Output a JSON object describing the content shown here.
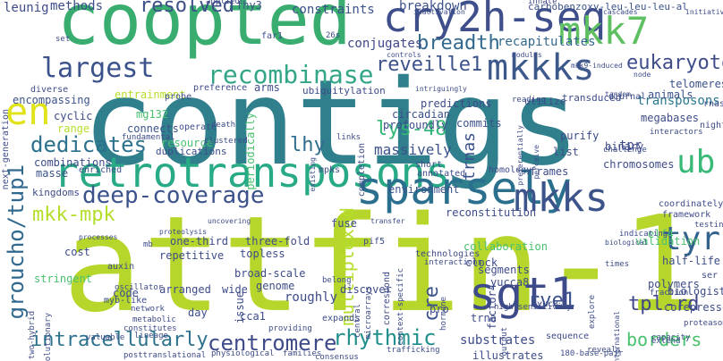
{
  "words": [
    {
      "text": "contigs",
      "color": "#2f7f8c"
    },
    {
      "text": "attfin-1",
      "color": "#b7d62b"
    },
    {
      "text": "coopted",
      "color": "#39ad6f"
    },
    {
      "text": "retrotransposons",
      "color": "#28aa86"
    },
    {
      "text": "sparsely",
      "color": "#2b6f8e"
    },
    {
      "text": "cry2h-seq",
      "color": "#3f4f8b"
    },
    {
      "text": "sgt1",
      "color": "#3e4b8a"
    },
    {
      "text": "mkkks",
      "color": "#3d588b"
    },
    {
      "text": "mkks",
      "color": "#3c548a"
    },
    {
      "text": "mkk7",
      "color": "#5fc061"
    },
    {
      "text": "recombinase",
      "color": "#33a688"
    },
    {
      "text": "largest",
      "color": "#3b528b"
    },
    {
      "text": "en",
      "color": "#dfe318"
    },
    {
      "text": "deep-coverage",
      "color": "#3b528b"
    },
    {
      "text": "groucho/tup1",
      "color": "#31688e"
    },
    {
      "text": "rhythmic",
      "color": "#21908d"
    },
    {
      "text": "centromere",
      "color": "#3e4a89"
    },
    {
      "text": "ub",
      "color": "#38b977"
    },
    {
      "text": "tyr",
      "color": "#33638d"
    },
    {
      "text": "dedicates",
      "color": "#2c718e"
    },
    {
      "text": "eukaryotes",
      "color": "#3e4c8a"
    },
    {
      "text": "reveille1",
      "color": "#3b528b"
    },
    {
      "text": "breadth",
      "color": "#31688e"
    },
    {
      "text": "resolved",
      "color": "#3d4e8a"
    },
    {
      "text": "mkk-mpk",
      "color": "#b5de2b"
    },
    {
      "text": "intracellularly",
      "color": "#2c728e"
    },
    {
      "text": "multiplexed",
      "color": "#b5de2b"
    },
    {
      "text": "rve1",
      "color": "#3b528b"
    },
    {
      "text": "lhy",
      "color": "#2f6c8e"
    },
    {
      "text": "lys-48",
      "color": "#35b779"
    },
    {
      "text": "tpl-rd",
      "color": "#3f4788"
    },
    {
      "text": "borders",
      "color": "#48c16e"
    },
    {
      "text": "trnas",
      "color": "#3b528b"
    },
    {
      "text": "massively",
      "color": "#3b528b"
    },
    {
      "text": "transposons",
      "color": "#2a788e"
    },
    {
      "text": "recapitulates",
      "color": "#31688e"
    },
    {
      "text": "conjugates",
      "color": "#3f4889"
    },
    {
      "text": "constraints",
      "color": "#3b528b"
    },
    {
      "text": "breakdown",
      "color": "#3b528b"
    },
    {
      "text": "carbobenzoxy-leu-leu-leu-al",
      "color": "#3b528b"
    },
    {
      "text": "innate",
      "color": "#3f4788"
    },
    {
      "text": "telomeres",
      "color": "#3b528b"
    },
    {
      "text": "fhy3",
      "color": "#3b528b"
    },
    {
      "text": "methods",
      "color": "#3e4c8a"
    },
    {
      "text": "leunig",
      "color": "#3e4c8a"
    },
    {
      "text": "applied",
      "color": "#3e4c8a"
    },
    {
      "text": "far1",
      "color": "#3e4c8a"
    },
    {
      "text": "ubiquitylation",
      "color": "#3e4c8a"
    },
    {
      "text": "predictions",
      "color": "#3e4c8a"
    },
    {
      "text": "commits",
      "color": "#3b528b"
    },
    {
      "text": "entrainment",
      "color": "#b5de2b"
    },
    {
      "text": "arms",
      "color": "#3e4c8a"
    },
    {
      "text": "preference",
      "color": "#3e4c8a"
    },
    {
      "text": "probe",
      "color": "#3e4c8a"
    },
    {
      "text": "next-generation",
      "color": "#3e4c8a"
    },
    {
      "text": "diverse",
      "color": "#3e4c8a"
    },
    {
      "text": "encompassing",
      "color": "#3b528b"
    },
    {
      "text": "cyclic",
      "color": "#3e4c8a"
    },
    {
      "text": "range",
      "color": "#b5de2b"
    },
    {
      "text": "mg132",
      "color": "#48c16e"
    },
    {
      "text": "connects",
      "color": "#3b528b"
    },
    {
      "text": "fundamental",
      "color": "#3e4c8a"
    },
    {
      "text": "operate",
      "color": "#3e4c8a"
    },
    {
      "text": "resource",
      "color": "#48c16e"
    },
    {
      "text": "duplications",
      "color": "#3e4c8a"
    },
    {
      "text": "combinations",
      "color": "#3e4c8a"
    },
    {
      "text": "masse",
      "color": "#3b528b"
    },
    {
      "text": "enriched",
      "color": "#3e4c8a"
    },
    {
      "text": "kingdoms",
      "color": "#3e4c8a"
    },
    {
      "text": "periodically",
      "color": "#48c16e"
    },
    {
      "text": "circadian",
      "color": "#3b528b"
    },
    {
      "text": "profoundly",
      "color": "#3e4c8a"
    },
    {
      "text": "animals",
      "color": "#3b528b"
    },
    {
      "text": "megabases",
      "color": "#3e4c8a"
    },
    {
      "text": "tpr",
      "color": "#3e4c8a"
    },
    {
      "text": "binary",
      "color": "#3e4c8a"
    },
    {
      "text": "chromosomes",
      "color": "#3e4c8a"
    },
    {
      "text": "environment",
      "color": "#3b528b"
    },
    {
      "text": "reconstitution",
      "color": "#3e4c8a"
    },
    {
      "text": "frames",
      "color": "#3e4c8a"
    },
    {
      "text": "homology",
      "color": "#3e4c8a"
    },
    {
      "text": "elf4",
      "color": "#48c16e"
    },
    {
      "text": "validation",
      "color": "#48c16e"
    },
    {
      "text": "collaboration",
      "color": "#48c16e"
    },
    {
      "text": "clock",
      "color": "#3e4c8a"
    },
    {
      "text": "segments",
      "color": "#3e4c8a"
    },
    {
      "text": "yucca8",
      "color": "#3e4c8a"
    },
    {
      "text": "cre",
      "color": "#3b528b"
    },
    {
      "text": "factor4",
      "color": "#3e4c8a"
    },
    {
      "text": "polymers",
      "color": "#3e4c8a"
    },
    {
      "text": "biologists",
      "color": "#3e4c8a"
    },
    {
      "text": "corepressors",
      "color": "#3e4c8a"
    },
    {
      "text": "proteasomal",
      "color": "#3e4c8a"
    },
    {
      "text": "one-third",
      "color": "#3e4c8a"
    },
    {
      "text": "three-fold",
      "color": "#3e4c8a"
    },
    {
      "text": "topless",
      "color": "#3e4c8a"
    },
    {
      "text": "repetitive",
      "color": "#3e4c8a"
    },
    {
      "text": "cost",
      "color": "#3e4c8a"
    },
    {
      "text": "stringent",
      "color": "#48c16e"
    },
    {
      "text": "code",
      "color": "#3e4c8a"
    },
    {
      "text": "arranged",
      "color": "#3e4c8a"
    },
    {
      "text": "wide",
      "color": "#3e4c8a"
    },
    {
      "text": "genome",
      "color": "#3e4c8a"
    },
    {
      "text": "roughly",
      "color": "#3e4c8a"
    },
    {
      "text": "day",
      "color": "#3e4c8a"
    },
    {
      "text": "cca1",
      "color": "#3e4c8a"
    },
    {
      "text": "substrates",
      "color": "#3e4c8a"
    },
    {
      "text": "trna",
      "color": "#3e4c8a"
    },
    {
      "text": "pro",
      "color": "#3e4c8a"
    },
    {
      "text": "discover",
      "color": "#3e4c8a"
    },
    {
      "text": "correspond",
      "color": "#3e4c8a"
    },
    {
      "text": "sequence",
      "color": "#3e4c8a"
    },
    {
      "text": "reveals",
      "color": "#3e4c8a"
    },
    {
      "text": "extend",
      "color": "#3e4c8a"
    },
    {
      "text": "half-life",
      "color": "#3e4c8a"
    },
    {
      "text": "list",
      "color": "#3e4c8a"
    },
    {
      "text": "purify",
      "color": "#3e4c8a"
    },
    {
      "text": "night",
      "color": "#3e4c8a"
    },
    {
      "text": "utilize",
      "color": "#3e4c8a"
    },
    {
      "text": "transduced",
      "color": "#3e4c8a"
    },
    {
      "text": "diurnal",
      "color": "#3e4c8a"
    },
    {
      "text": "rnas",
      "color": "#3e4c8a"
    },
    {
      "text": "short",
      "color": "#3e4c8a"
    },
    {
      "text": "annotated",
      "color": "#3e4c8a"
    },
    {
      "text": "completion",
      "color": "#3e4c8a"
    },
    {
      "text": "uncovering",
      "color": "#3e4c8a"
    },
    {
      "text": "fuse",
      "color": "#3e4c8a"
    },
    {
      "text": "mpks",
      "color": "#3e4c8a"
    },
    {
      "text": "issue",
      "color": "#3e4c8a"
    },
    {
      "text": "broad-scale",
      "color": "#3e4c8a"
    },
    {
      "text": "auxin",
      "color": "#3e4c8a"
    },
    {
      "text": "myb-like",
      "color": "#3e4c8a"
    },
    {
      "text": "two-hybrid",
      "color": "#3e4c8a"
    },
    {
      "text": "evolutionary",
      "color": "#3e4c8a"
    },
    {
      "text": "constitutes",
      "color": "#3e4c8a"
    },
    {
      "text": "posttranslational",
      "color": "#3e4c8a"
    },
    {
      "text": "physiological",
      "color": "#3e4c8a"
    },
    {
      "text": "families",
      "color": "#3e4c8a"
    },
    {
      "text": "consensus",
      "color": "#3e4c8a"
    },
    {
      "text": "trafficking",
      "color": "#3e4c8a"
    },
    {
      "text": "illustrates",
      "color": "#3e4c8a"
    },
    {
      "text": "180-base-pair",
      "color": "#3e4c8a"
    },
    {
      "text": "yuc8",
      "color": "#3e4c8a"
    },
    {
      "text": "pif5",
      "color": "#3e4c8a"
    },
    {
      "text": "technologies",
      "color": "#3e4c8a"
    },
    {
      "text": "oscillator",
      "color": "#3e4c8a"
    },
    {
      "text": "belong",
      "color": "#3e4c8a"
    },
    {
      "text": "mb",
      "color": "#3e4c8a"
    },
    {
      "text": "expands",
      "color": "#3e4c8a"
    },
    {
      "text": "providing",
      "color": "#3e4c8a"
    },
    {
      "text": "interactions",
      "color": "#3e4c8a"
    },
    {
      "text": "high-sensitivity",
      "color": "#3e4c8a"
    },
    {
      "text": "coordinately",
      "color": "#3e4c8a"
    },
    {
      "text": "framework",
      "color": "#3e4c8a"
    },
    {
      "text": "testing",
      "color": "#3e4c8a"
    },
    {
      "text": "challenge",
      "color": "#3e4c8a"
    },
    {
      "text": "interactors",
      "color": "#3e4c8a"
    },
    {
      "text": "links",
      "color": "#3e4c8a"
    },
    {
      "text": "death",
      "color": "#3e4c8a"
    },
    {
      "text": "clustered",
      "color": "#3e4c8a"
    },
    {
      "text": "network",
      "color": "#3e4c8a"
    },
    {
      "text": "metabolic",
      "color": "#3e4c8a"
    },
    {
      "text": "lineage",
      "color": "#3e4c8a"
    },
    {
      "text": "valuable",
      "color": "#3e4c8a"
    },
    {
      "text": "processes",
      "color": "#3e4c8a"
    },
    {
      "text": "proteolysis",
      "color": "#3e4c8a"
    },
    {
      "text": "transfer",
      "color": "#3e4c8a"
    },
    {
      "text": "indicating",
      "color": "#3e4c8a"
    },
    {
      "text": "times",
      "color": "#3e4c8a"
    },
    {
      "text": "capacity",
      "color": "#3e4c8a"
    },
    {
      "text": "fraction",
      "color": "#3e4c8a"
    },
    {
      "text": "international",
      "color": "#3e4c8a"
    },
    {
      "text": "hormone",
      "color": "#3e4c8a"
    },
    {
      "text": "microarrays",
      "color": "#3e4c8a"
    },
    {
      "text": "central",
      "color": "#3e4c8a"
    },
    {
      "text": "output",
      "color": "#3e4c8a"
    },
    {
      "text": "explore",
      "color": "#3e4c8a"
    },
    {
      "text": "context-specific",
      "color": "#3e4c8a"
    },
    {
      "text": "set",
      "color": "#3e4c8a"
    },
    {
      "text": "26s",
      "color": "#3e4c8a"
    },
    {
      "text": "inactivation",
      "color": "#3e4c8a"
    },
    {
      "text": "controls",
      "color": "#3e4c8a"
    },
    {
      "text": "modules",
      "color": "#3e4c8a"
    },
    {
      "text": "mkk9-induced",
      "color": "#3e4c8a"
    },
    {
      "text": "cascades",
      "color": "#3e4c8a"
    },
    {
      "text": "initiative",
      "color": "#3e4c8a"
    },
    {
      "text": "node",
      "color": "#3e4c8a"
    },
    {
      "text": "tandem",
      "color": "#3e4c8a"
    },
    {
      "text": "reading",
      "color": "#3e4c8a"
    },
    {
      "text": "intriguingly",
      "color": "#3e4c8a"
    },
    {
      "text": "preferentially",
      "color": "#3e4c8a"
    },
    {
      "text": "existing",
      "color": "#3e4c8a"
    },
    {
      "text": "perceive",
      "color": "#3e4c8a"
    },
    {
      "text": "ser",
      "color": "#3e4c8a"
    },
    {
      "text": "biological",
      "color": "#3e4c8a"
    }
  ]
}
